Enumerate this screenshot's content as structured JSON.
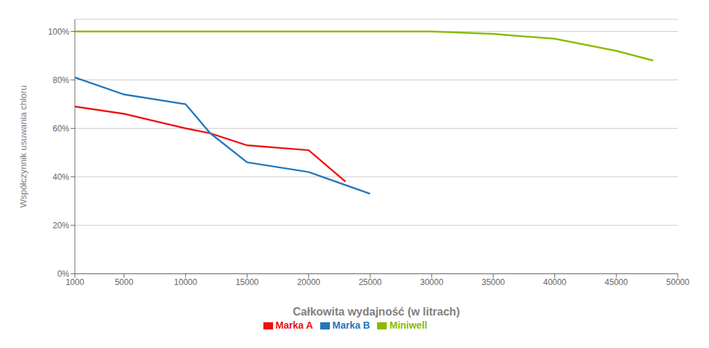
{
  "chart_data": {
    "type": "line",
    "xlabel": "Całkowita wydajność (w litrach)",
    "ylabel": "Współczynnik usuwania chloru",
    "xlim": [
      1000,
      50000
    ],
    "ylim": [
      0,
      1.05
    ],
    "xticks": [
      1000,
      5000,
      10000,
      15000,
      20000,
      25000,
      30000,
      35000,
      40000,
      45000,
      50000
    ],
    "yticks": [
      {
        "value": 0.0,
        "label": "0%"
      },
      {
        "value": 0.2,
        "label": "20%"
      },
      {
        "value": 0.4,
        "label": "40%"
      },
      {
        "value": 0.6,
        "label": "60%"
      },
      {
        "value": 0.8,
        "label": "80%"
      },
      {
        "value": 1.0,
        "label": "100%"
      }
    ],
    "grid": "y",
    "legend": "bottom",
    "series": [
      {
        "name": "Marka A",
        "color": "#ee1111",
        "x": [
          1000,
          5000,
          10000,
          12000,
          15000,
          20000,
          23000
        ],
        "values": [
          0.69,
          0.66,
          0.6,
          0.58,
          0.53,
          0.51,
          0.38
        ]
      },
      {
        "name": "Marka B",
        "color": "#2277bb",
        "x": [
          1000,
          5000,
          10000,
          12000,
          15000,
          20000,
          25000
        ],
        "values": [
          0.81,
          0.74,
          0.7,
          0.58,
          0.46,
          0.42,
          0.33
        ]
      },
      {
        "name": "Miniwell",
        "color": "#88bb00",
        "x": [
          1000,
          5000,
          10000,
          15000,
          20000,
          25000,
          30000,
          35000,
          40000,
          45000,
          48000
        ],
        "values": [
          1.0,
          1.0,
          1.0,
          1.0,
          1.0,
          1.0,
          1.0,
          0.99,
          0.97,
          0.92,
          0.88
        ]
      }
    ]
  }
}
